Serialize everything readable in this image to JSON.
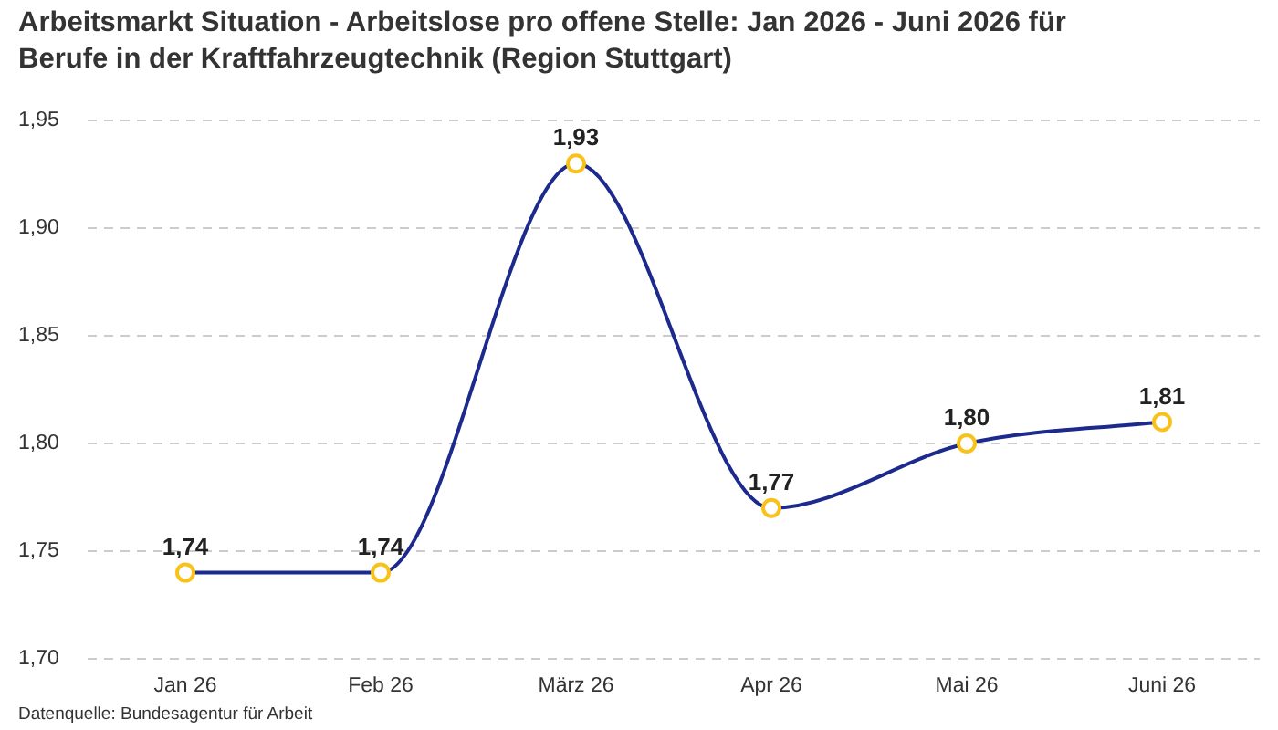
{
  "chart_data": {
    "type": "line",
    "title": "Arbeitsmarkt Situation - Arbeitslose pro offene Stelle: Jan 2026 - Juni 2026 für Berufe in der Kraftfahrzeugtechnik (Region Stuttgart)",
    "categories": [
      "Jan 26",
      "Feb 26",
      "März 26",
      "Apr 26",
      "Mai 26",
      "Juni 26"
    ],
    "series": [
      {
        "color": "#1b2a8c",
        "values": [
          1.74,
          1.74,
          1.93,
          1.77,
          1.8,
          1.81
        ],
        "value_labels": [
          "1,74",
          "1,74",
          "1,93",
          "1,77",
          "1,80",
          "1,81"
        ]
      }
    ],
    "ylim": [
      1.7,
      1.95
    ],
    "yticks": [
      {
        "value": 1.7,
        "label": "1,70"
      },
      {
        "value": 1.75,
        "label": "1,75"
      },
      {
        "value": 1.8,
        "label": "1,80"
      },
      {
        "value": 1.85,
        "label": "1,85"
      },
      {
        "value": 1.9,
        "label": "1,90"
      },
      {
        "value": 1.95,
        "label": "1,95"
      }
    ],
    "grid": "y",
    "legend": false,
    "marker": "circle",
    "line_style": "solid",
    "annotations": [
      "Datenquelle: Bundesagentur für Arbeit"
    ]
  }
}
